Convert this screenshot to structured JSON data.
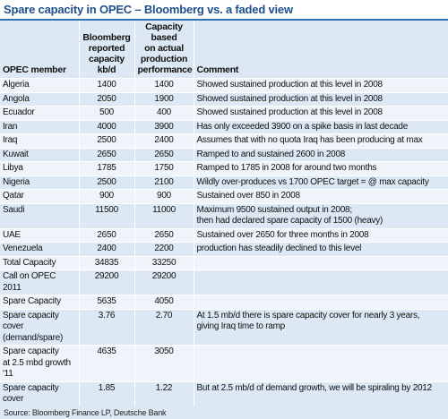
{
  "title": "Spare capacity in OPEC – Bloomberg vs. a faded view",
  "table": {
    "header": [
      "OPEC member",
      "Bloomberg\nreported\ncapacity\nkb/d",
      "Capacity\nbased\non actual\nproduction\nperformance",
      "Comment"
    ],
    "rows": [
      [
        "Algeria",
        "1400",
        "1400",
        "Showed sustained production at this level in 2008"
      ],
      [
        "Angola",
        "2050",
        "1900",
        "Showed sustained production at this level in 2008"
      ],
      [
        "Ecuador",
        "500",
        "400",
        "Showed sustained production at this level in 2008"
      ],
      [
        "Iran",
        "4000",
        "3900",
        "Has only exceeded 3900 on a spike basis in last decade"
      ],
      [
        "Iraq",
        "2500",
        "2400",
        "Assumes that with no quota Iraq has been producing at max"
      ],
      [
        "Kuwait",
        "2650",
        "2650",
        "Ramped to and sustained 2600 in 2008"
      ],
      [
        "Libya",
        "1785",
        "1750",
        "Ramped to 1785 in 2008 for around two months"
      ],
      [
        "Nigeria",
        "2500",
        "2100",
        "Wildly over-produces vs 1700 OPEC target = @ max capacity"
      ],
      [
        "Qatar",
        "900",
        "900",
        "Sustained over 850 in 2008"
      ],
      [
        "Saudi",
        "11500",
        "11000",
        "Maximum 9500 sustained output in 2008;\nthen had declared spare capacity of 1500 (heavy)"
      ],
      [
        "UAE",
        "2650",
        "2650",
        "Sustained over 2650 for three months in 2008"
      ],
      [
        "Venezuela",
        "2400",
        "2200",
        "production has steadily declined to this level"
      ],
      [
        "Total Capacity",
        "34835",
        "33250",
        ""
      ],
      [
        "Call on OPEC 2011",
        "29200",
        "29200",
        ""
      ],
      [
        "Spare Capacity",
        "5635",
        "4050",
        ""
      ],
      [
        "Spare capacity cover\n(demand/spare)",
        "3.76",
        "2.70",
        "At 1.5 mb/d there is spare capacity cover for nearly 3 years,\ngiving Iraq time to ramp"
      ],
      [
        "Spare capacity\nat 2.5 mbd growth '11",
        "4635",
        "3050",
        ""
      ],
      [
        "Spare capacity cover",
        "1.85",
        "1.22",
        "But at 2.5 mb/d of demand growth, we will be spiraling by 2012"
      ]
    ]
  },
  "source": "Source: Bloomberg Finance LP, Deutsche Bank"
}
